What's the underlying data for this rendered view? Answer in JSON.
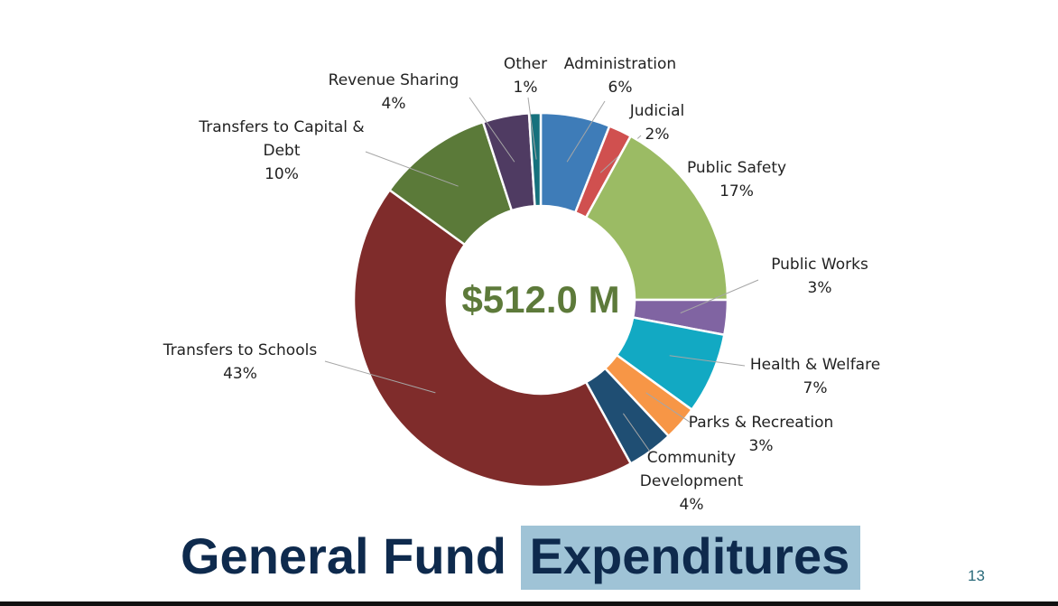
{
  "chart_data": {
    "type": "pie",
    "variant": "donut",
    "center_label": "$512.0 M",
    "start": "top",
    "direction": "clockwise",
    "slices": [
      {
        "label": "Administration",
        "value": 6,
        "pct": "6%",
        "color": "#3e7cb8"
      },
      {
        "label": "Judicial",
        "value": 2,
        "pct": "2%",
        "color": "#d0504f"
      },
      {
        "label": "Public Safety",
        "value": 17,
        "pct": "17%",
        "color": "#9bbb64"
      },
      {
        "label": "Public Works",
        "value": 3,
        "pct": "3%",
        "color": "#8064a2"
      },
      {
        "label": "Health & Welfare",
        "value": 7,
        "pct": "7%",
        "color": "#12a9c3"
      },
      {
        "label": "Parks & Recreation",
        "value": 3,
        "pct": "3%",
        "color": "#f79646"
      },
      {
        "label": "Community Development",
        "value": 4,
        "pct": "4%",
        "color": "#1f4e73"
      },
      {
        "label": "Transfers to Schools",
        "value": 43,
        "pct": "43%",
        "color": "#7f2c2b"
      },
      {
        "label": "Transfers to Capital & Debt",
        "value": 10,
        "pct": "10%",
        "color": "#5b7a39"
      },
      {
        "label": "Revenue Sharing",
        "value": 4,
        "pct": "4%",
        "color": "#4f3b62"
      },
      {
        "label": "Other",
        "value": 1,
        "pct": "1%",
        "color": "#16717d"
      }
    ]
  },
  "title": {
    "part1": "General Fund",
    "part2": "Expenditures"
  },
  "page_number": "13"
}
